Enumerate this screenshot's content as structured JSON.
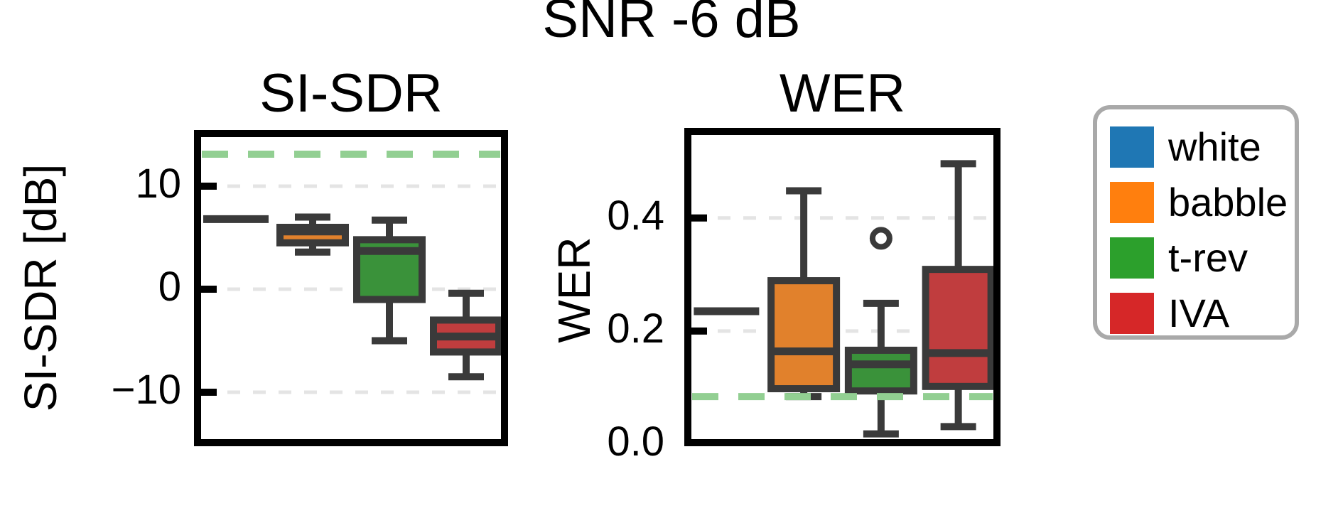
{
  "figure": {
    "title": "SNR -6 dB"
  },
  "chart_data": [
    {
      "type": "box",
      "title": "SI-SDR",
      "ylabel": "SI-SDR [dB]",
      "categories": [
        "white",
        "babble",
        "t-rev",
        "IVA"
      ],
      "yticks": [
        {
          "label": "10",
          "value": 10
        },
        {
          "label": "0",
          "value": 0
        },
        {
          "label": "−10",
          "value": -10
        }
      ],
      "ylim": [
        -14.9,
        15.1
      ],
      "grid": true,
      "legend_position": "outside-right",
      "reference_line": 13.1,
      "boxes": [
        {
          "category": "white",
          "flat_value": 6.8
        },
        {
          "category": "babble",
          "whislo": 3.6,
          "q1": 4.5,
          "med": 5.6,
          "q3": 6.0,
          "whishi": 7.0,
          "fliers": []
        },
        {
          "category": "t-rev",
          "whislo": -5.0,
          "q1": -1.0,
          "med": 3.7,
          "q3": 4.8,
          "whishi": 6.7,
          "fliers": []
        },
        {
          "category": "IVA",
          "whislo": -8.5,
          "q1": -6.1,
          "med": -4.6,
          "q3": -3.0,
          "whishi": -0.4,
          "fliers": []
        }
      ]
    },
    {
      "type": "box",
      "title": "WER",
      "ylabel": "WER",
      "categories": [
        "white",
        "babble",
        "t-rev",
        "IVA"
      ],
      "yticks": [
        {
          "label": "0.4",
          "value": 0.4
        },
        {
          "label": "0.2",
          "value": 0.2
        },
        {
          "label": "0.0",
          "value": 0.0
        }
      ],
      "ylim": [
        0,
        0.553
      ],
      "grid": true,
      "reference_line": 0.084,
      "boxes": [
        {
          "category": "white",
          "flat_value": 0.235
        },
        {
          "category": "babble",
          "whislo": 0.084,
          "q1": 0.098,
          "med": 0.164,
          "q3": 0.289,
          "whishi": 0.448,
          "fliers": []
        },
        {
          "category": "t-rev",
          "whislo": 0.018,
          "q1": 0.094,
          "med": 0.141,
          "q3": 0.166,
          "whishi": 0.249,
          "fliers": [
            0.364
          ]
        },
        {
          "category": "IVA",
          "whislo": 0.031,
          "q1": 0.102,
          "med": 0.161,
          "q3": 0.309,
          "whishi": 0.496,
          "fliers": []
        }
      ]
    }
  ],
  "legend": {
    "items": [
      {
        "label": "white",
        "color": "#1f77b4"
      },
      {
        "label": "babble",
        "color": "#ff7f0e"
      },
      {
        "label": "t-rev",
        "color": "#2ca02c"
      },
      {
        "label": "IVA",
        "color": "#d62728"
      }
    ]
  },
  "style": {
    "box_fill": {
      "white": "#3274a1",
      "babble": "#e1812c",
      "t-rev": "#3a923a",
      "IVA": "#c03d3e"
    },
    "edge_color": "#3a3a3a",
    "grid_color": "#e4e4e4",
    "reference_color": "#92cf92",
    "frame_color": "#000000",
    "legend_border_color": "#a9a9a9"
  }
}
